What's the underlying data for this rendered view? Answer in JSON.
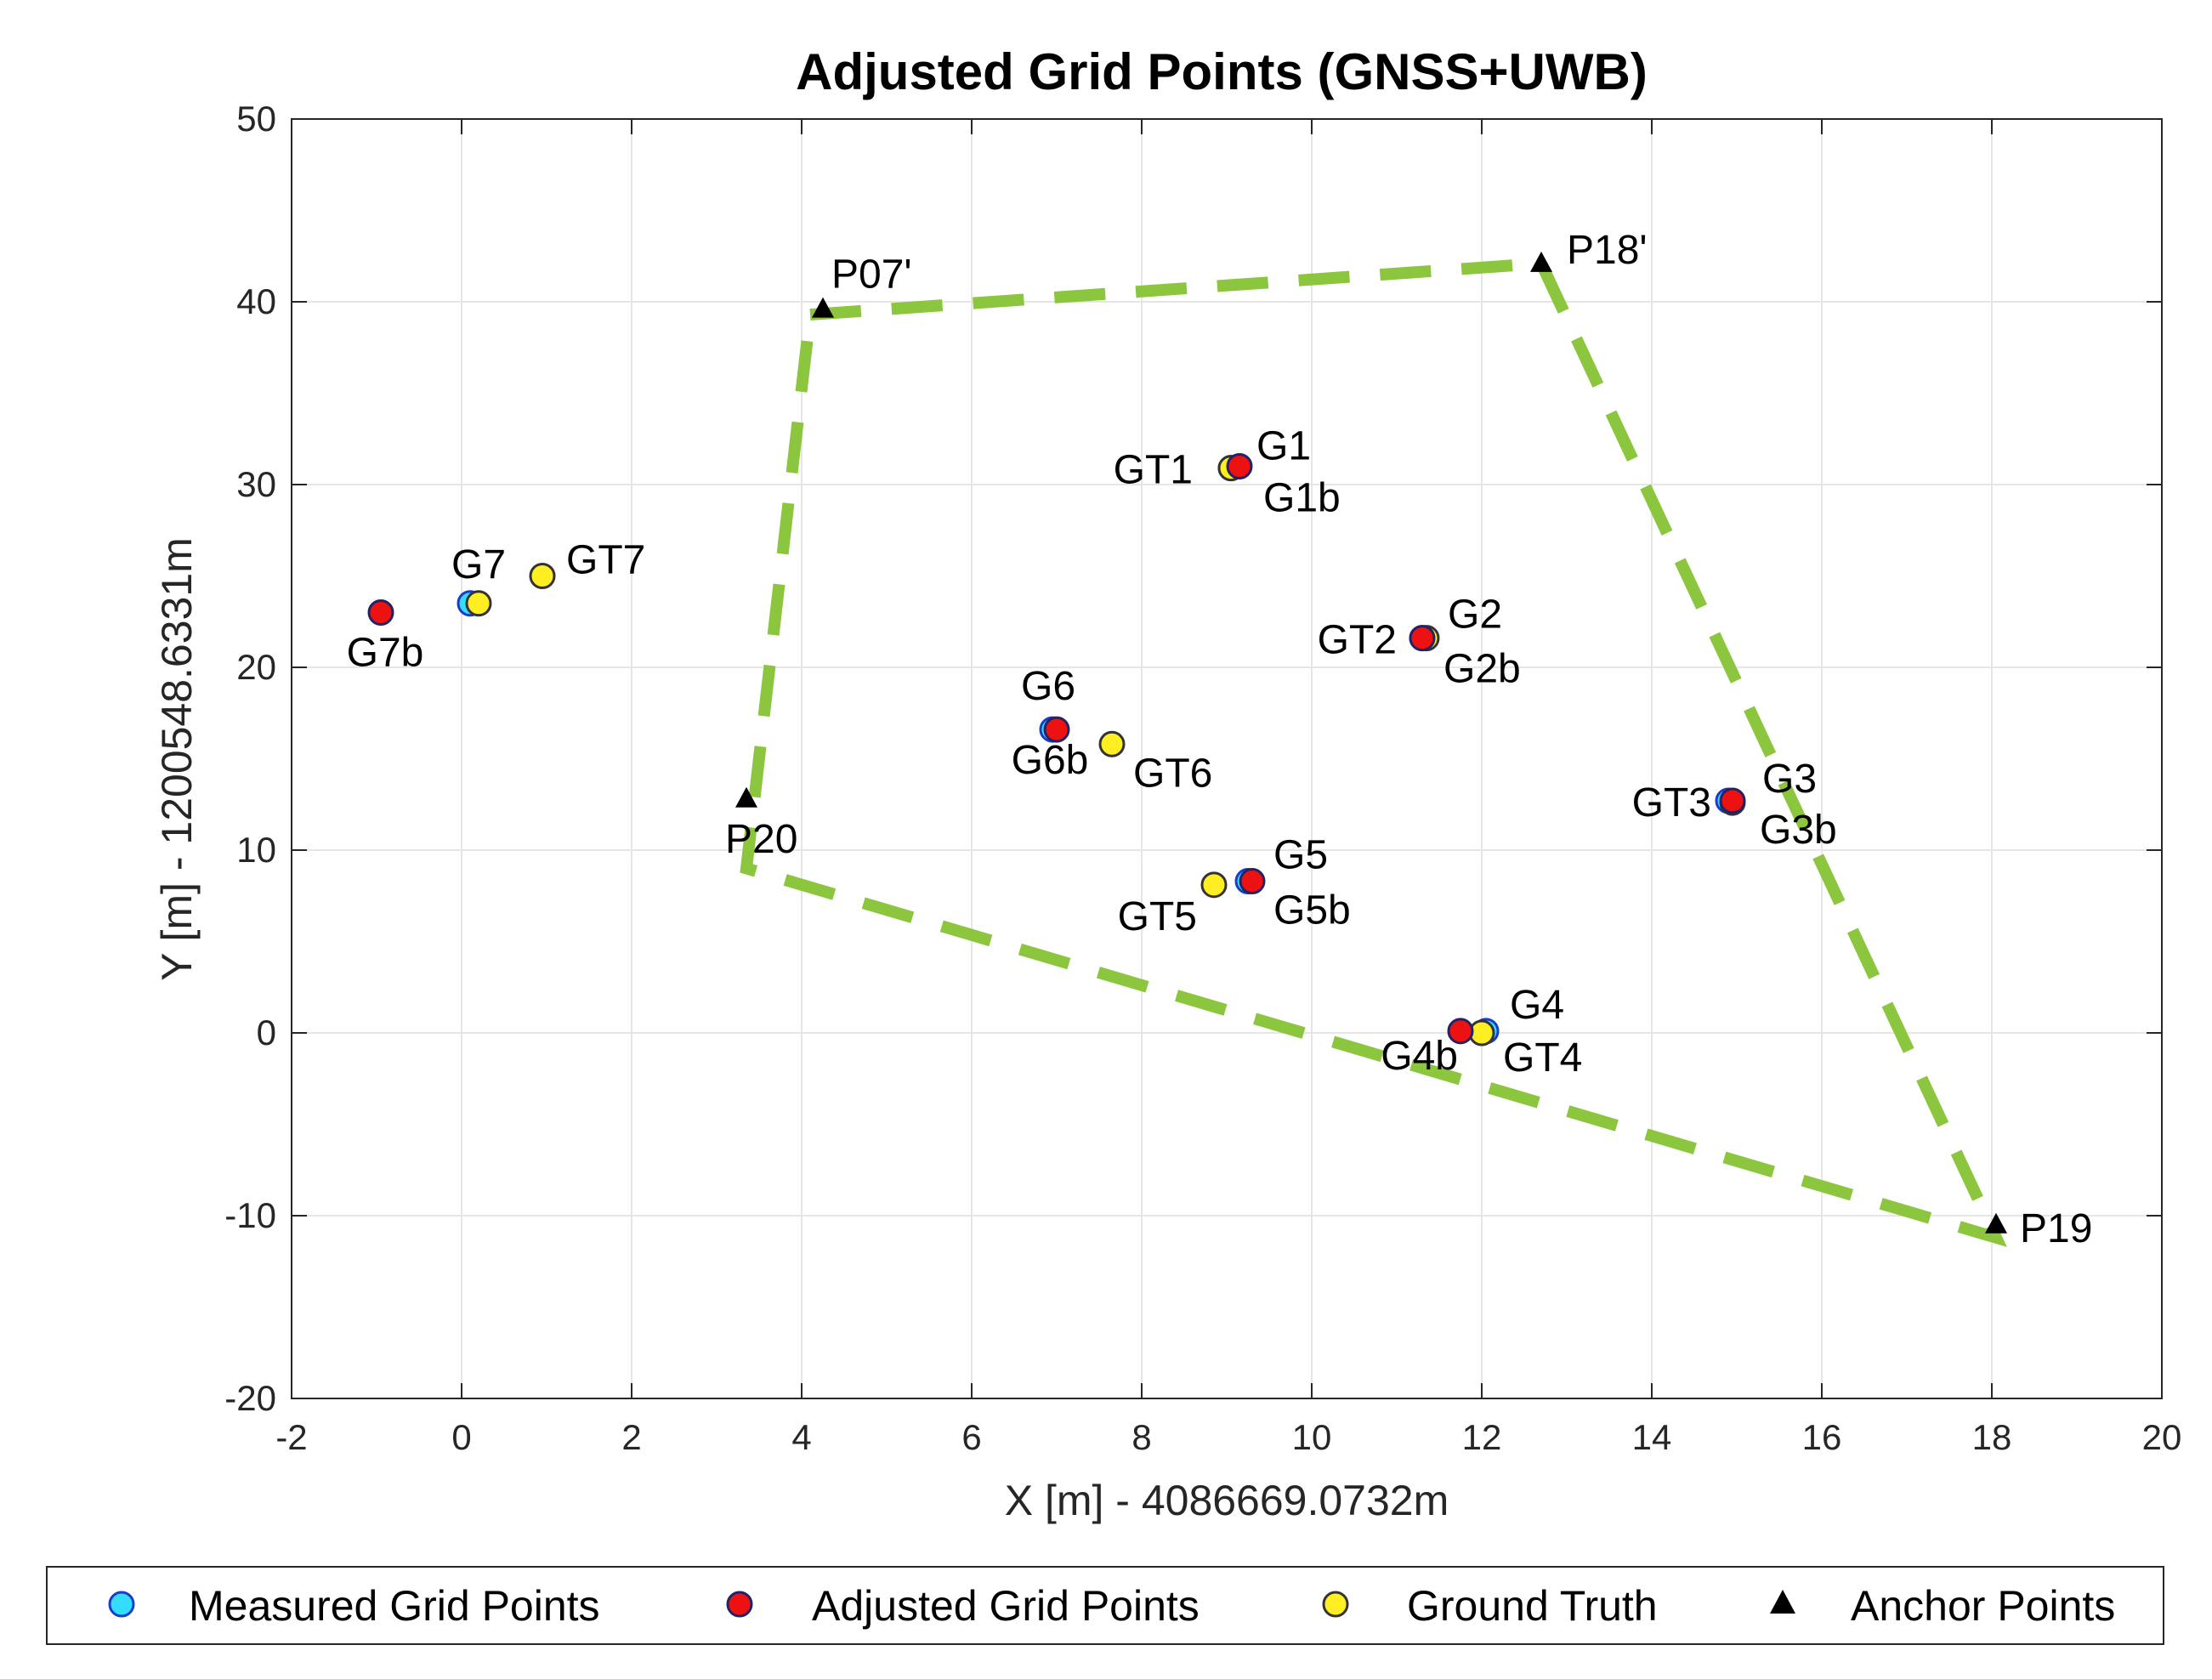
{
  "chart_data": {
    "type": "scatter",
    "title": "Adjusted Grid Points (GNSS+UWB)",
    "xlabel": "X [m] - 4086669.0732m",
    "ylabel": "Y [m] - 1200548.6331m",
    "xlim": [
      -2,
      20
    ],
    "ylim": [
      -20,
      50
    ],
    "xticks": [
      -2,
      0,
      2,
      4,
      6,
      8,
      10,
      12,
      14,
      16,
      18,
      20
    ],
    "yticks": [
      -20,
      -10,
      0,
      10,
      20,
      30,
      40,
      50
    ],
    "grid": true,
    "legend_position": "bottom",
    "colors": {
      "measured": "#33ddff",
      "adjusted": "#ee1111",
      "truth": "#ffee22",
      "anchor": "#000000",
      "boundary": "#8cc63f"
    },
    "series": [
      {
        "name": "Measured Grid Points",
        "marker": "circle",
        "points": [
          {
            "x": 0.1,
            "y": 23.5
          },
          {
            "x": 9.05,
            "y": 30.9
          },
          {
            "x": 11.3,
            "y": 21.6
          },
          {
            "x": 14.9,
            "y": 12.7
          },
          {
            "x": 12.05,
            "y": 0.1
          },
          {
            "x": 9.25,
            "y": 8.3
          },
          {
            "x": 6.95,
            "y": 16.6
          }
        ]
      },
      {
        "name": "Adjusted Grid Points",
        "marker": "circle",
        "points": [
          {
            "x": -0.95,
            "y": 23.0
          },
          {
            "x": 9.15,
            "y": 31.0
          },
          {
            "x": 11.3,
            "y": 21.6
          },
          {
            "x": 14.95,
            "y": 12.7
          },
          {
            "x": 11.75,
            "y": 0.1
          },
          {
            "x": 9.3,
            "y": 8.3
          },
          {
            "x": 7.0,
            "y": 16.6
          }
        ]
      },
      {
        "name": "Ground Truth",
        "marker": "circle",
        "points": [
          {
            "x": 0.95,
            "y": 25.0
          },
          {
            "x": 9.05,
            "y": 30.9
          },
          {
            "x": 11.35,
            "y": 21.6
          },
          {
            "x": 14.95,
            "y": 12.6
          },
          {
            "x": 12.0,
            "y": 0.0
          },
          {
            "x": 8.85,
            "y": 8.1
          },
          {
            "x": 7.65,
            "y": 15.8
          },
          {
            "x": 0.2,
            "y": 23.5
          }
        ]
      },
      {
        "name": "Anchor Points",
        "marker": "triangle",
        "points": [
          {
            "x": 4.25,
            "y": 39.6
          },
          {
            "x": 12.7,
            "y": 42.1
          },
          {
            "x": 18.05,
            "y": -10.5
          },
          {
            "x": 3.35,
            "y": 12.8
          }
        ]
      }
    ],
    "boundary": [
      {
        "x": 4.1,
        "y": 39.3
      },
      {
        "x": 12.7,
        "y": 42.1
      },
      {
        "x": 18.05,
        "y": -11.2
      },
      {
        "x": 3.35,
        "y": 9.0
      },
      {
        "x": 4.1,
        "y": 39.3
      }
    ],
    "annotations": [
      {
        "text": "P07'",
        "x": 4.25,
        "y": 39.6
      },
      {
        "text": "P18'",
        "x": 12.7,
        "y": 42.1
      },
      {
        "text": "P19",
        "x": 18.05,
        "y": -10.5
      },
      {
        "text": "P20",
        "x": 3.35,
        "y": 12.8
      },
      {
        "text": "G1",
        "x": 9.15,
        "y": 31.0
      },
      {
        "text": "G1b",
        "x": 9.15,
        "y": 31.0
      },
      {
        "text": "GT1",
        "x": 9.05,
        "y": 30.9
      },
      {
        "text": "G2",
        "x": 11.3,
        "y": 21.6
      },
      {
        "text": "G2b",
        "x": 11.3,
        "y": 21.6
      },
      {
        "text": "GT2",
        "x": 11.3,
        "y": 21.6
      },
      {
        "text": "G3",
        "x": 14.95,
        "y": 12.7
      },
      {
        "text": "G3b",
        "x": 14.95,
        "y": 12.7
      },
      {
        "text": "GT3",
        "x": 14.95,
        "y": 12.7
      },
      {
        "text": "G4",
        "x": 12.05,
        "y": 0.1
      },
      {
        "text": "G4b",
        "x": 11.75,
        "y": 0.1
      },
      {
        "text": "GT4",
        "x": 12.0,
        "y": 0.0
      },
      {
        "text": "G5",
        "x": 9.3,
        "y": 8.3
      },
      {
        "text": "G5b",
        "x": 9.3,
        "y": 8.3
      },
      {
        "text": "GT5",
        "x": 8.85,
        "y": 8.1
      },
      {
        "text": "G6",
        "x": 7.0,
        "y": 16.6
      },
      {
        "text": "G6b",
        "x": 7.0,
        "y": 16.6
      },
      {
        "text": "GT6",
        "x": 7.65,
        "y": 15.8
      },
      {
        "text": "G7",
        "x": 0.1,
        "y": 23.5
      },
      {
        "text": "G7b",
        "x": -0.95,
        "y": 23.0
      },
      {
        "text": "GT7",
        "x": 0.95,
        "y": 25.0
      }
    ]
  }
}
